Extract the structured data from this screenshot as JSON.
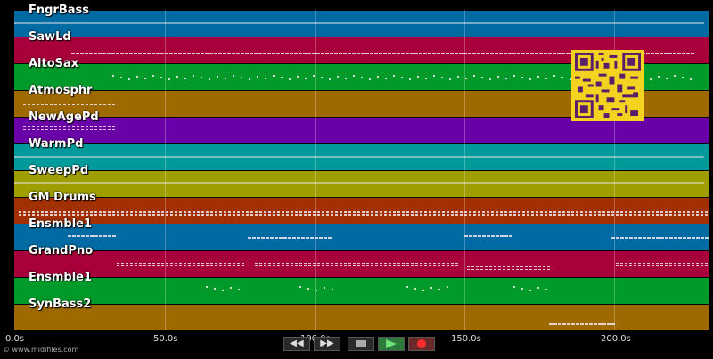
{
  "tracks": [
    {
      "name": "FngrBass",
      "color": "#006aa3"
    },
    {
      "name": "SawLd",
      "color": "#a8003a"
    },
    {
      "name": "AltoSax",
      "color": "#009a2a"
    },
    {
      "name": "Atmosphr",
      "color": "#9e6a00"
    },
    {
      "name": "NewAgePd",
      "color": "#6a00a8"
    },
    {
      "name": "WarmPd",
      "color": "#009a9a"
    },
    {
      "name": "SweepPd",
      "color": "#9e9e00"
    },
    {
      "name": "GM Drums",
      "color": "#a33000"
    },
    {
      "name": "Ensmble1",
      "color": "#006aa3"
    },
    {
      "name": "GrandPno",
      "color": "#a8003a"
    },
    {
      "name": "Ensmble1",
      "color": "#009a2a"
    },
    {
      "name": "SynBass2",
      "color": "#9e6a00"
    }
  ],
  "timeline": {
    "ticks": [
      "0.0s",
      "50.0s",
      "100.0s",
      "150.0s",
      "200.0s"
    ],
    "copyright": "© www.midifiles.com"
  },
  "transport": {
    "rewind": "◀◀",
    "forward": "▶▶"
  }
}
